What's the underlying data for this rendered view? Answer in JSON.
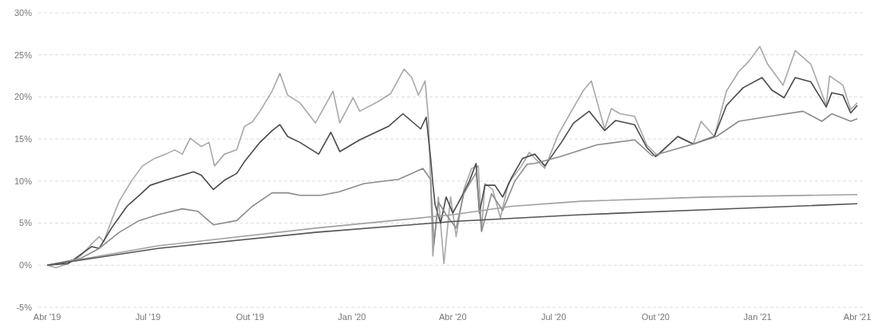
{
  "chart_data": {
    "type": "line",
    "xlim": [
      "2019-03-24",
      "2021-04-06"
    ],
    "xticks": [
      {
        "value": "2019-04-01",
        "label": "Abr '19"
      },
      {
        "value": "2019-07-01",
        "label": "Jul '19"
      },
      {
        "value": "2019-10-01",
        "label": "Out '19"
      },
      {
        "value": "2020-01-01",
        "label": "Jan '20"
      },
      {
        "value": "2020-04-01",
        "label": "Abr '20"
      },
      {
        "value": "2020-07-01",
        "label": "Jul '20"
      },
      {
        "value": "2020-10-01",
        "label": "Out '20"
      },
      {
        "value": "2021-01-01",
        "label": "Jan '21"
      },
      {
        "value": "2021-04-01",
        "label": "Abr '21"
      }
    ],
    "ylim": [
      -5,
      30
    ],
    "yticks": [
      {
        "value": -5,
        "label": "-5%"
      },
      {
        "value": 0,
        "label": "0%"
      },
      {
        "value": 5,
        "label": "5%"
      },
      {
        "value": 10,
        "label": "10%"
      },
      {
        "value": 15,
        "label": "15%"
      },
      {
        "value": 20,
        "label": "20%"
      },
      {
        "value": 25,
        "label": "25%"
      },
      {
        "value": 30,
        "label": "30%"
      }
    ],
    "grid": "y",
    "series": [
      {
        "color": "#a8a8a8",
        "x": [
          "2019-04-01",
          "2019-04-09",
          "2019-04-20",
          "2019-05-01",
          "2019-05-11",
          "2019-05-18",
          "2019-05-22",
          "2019-05-29",
          "2019-06-05",
          "2019-06-16",
          "2019-06-26",
          "2019-07-07",
          "2019-07-17",
          "2019-07-25",
          "2019-08-01",
          "2019-08-08",
          "2019-08-18",
          "2019-08-25",
          "2019-08-30",
          "2019-09-08",
          "2019-09-19",
          "2019-09-26",
          "2019-10-03",
          "2019-10-10",
          "2019-10-21",
          "2019-10-28",
          "2019-11-04",
          "2019-11-15",
          "2019-11-29",
          "2019-12-15",
          "2019-12-21",
          "2020-01-02",
          "2020-01-08",
          "2020-01-24",
          "2020-02-05",
          "2020-02-17",
          "2020-02-24",
          "2020-03-01",
          "2020-03-07",
          "2020-03-10",
          "2020-03-12",
          "2020-03-14",
          "2020-03-19",
          "2020-03-24",
          "2020-03-30",
          "2020-04-04",
          "2020-04-11",
          "2020-04-18",
          "2020-04-24",
          "2020-04-27",
          "2020-04-30",
          "2020-05-07",
          "2020-05-14",
          "2020-05-21",
          "2020-06-02",
          "2020-06-09",
          "2020-06-23",
          "2020-07-05",
          "2020-07-17",
          "2020-07-28",
          "2020-08-04",
          "2020-08-16",
          "2020-08-22",
          "2020-08-30",
          "2020-09-12",
          "2020-09-23",
          "2020-10-03",
          "2020-10-21",
          "2020-11-04",
          "2020-11-11",
          "2020-11-23",
          "2020-12-04",
          "2020-12-15",
          "2020-12-24",
          "2021-01-03",
          "2021-01-10",
          "2021-01-24",
          "2021-02-04",
          "2021-02-18",
          "2021-03-04",
          "2021-03-07",
          "2021-03-19",
          "2021-03-26",
          "2021-04-01"
        ],
        "values": [
          0,
          -0.3,
          0.2,
          1.1,
          2.5,
          3.4,
          2.8,
          5.3,
          7.6,
          10,
          11.8,
          12.7,
          13.2,
          13.7,
          13.2,
          15.1,
          14.1,
          14.6,
          11.8,
          13.2,
          13.7,
          16.5,
          17,
          18.3,
          20.7,
          22.8,
          20.2,
          19.3,
          16.9,
          20.7,
          16.9,
          19.9,
          18.3,
          19.4,
          20.4,
          23.3,
          22.3,
          20.2,
          21.9,
          17.4,
          9.7,
          1.1,
          8.1,
          0.2,
          8.1,
          3.4,
          9,
          11.5,
          11.8,
          4.1,
          9.7,
          9,
          5.6,
          9.7,
          11.8,
          13.4,
          11.5,
          15.5,
          18.3,
          20.8,
          21.9,
          16.2,
          18.6,
          18,
          17.7,
          14.3,
          13,
          15.3,
          14.4,
          17.1,
          15.3,
          20.7,
          23,
          24.2,
          26,
          23.9,
          21.4,
          25.5,
          23.9,
          19,
          22.5,
          21.4,
          18.5,
          19.3
        ]
      },
      {
        "color": "#4a4a4a",
        "x": [
          "2019-04-01",
          "2019-04-20",
          "2019-05-11",
          "2019-05-18",
          "2019-05-29",
          "2019-06-12",
          "2019-06-23",
          "2019-07-03",
          "2019-07-17",
          "2019-08-01",
          "2019-08-11",
          "2019-08-18",
          "2019-08-29",
          "2019-09-08",
          "2019-09-19",
          "2019-09-26",
          "2019-10-10",
          "2019-10-21",
          "2019-10-28",
          "2019-11-04",
          "2019-11-15",
          "2019-12-02",
          "2019-12-13",
          "2019-12-21",
          "2020-01-08",
          "2020-02-03",
          "2020-02-16",
          "2020-02-24",
          "2020-03-03",
          "2020-03-08",
          "2020-03-12",
          "2020-03-14",
          "2020-03-16",
          "2020-03-21",
          "2020-03-26",
          "2020-04-01",
          "2020-04-08",
          "2020-04-16",
          "2020-04-22",
          "2020-04-25",
          "2020-04-30",
          "2020-05-09",
          "2020-05-16",
          "2020-05-24",
          "2020-06-03",
          "2020-06-14",
          "2020-06-23",
          "2020-07-08",
          "2020-07-19",
          "2020-08-02",
          "2020-08-16",
          "2020-08-26",
          "2020-09-12",
          "2020-09-23",
          "2020-10-01",
          "2020-10-21",
          "2020-11-04",
          "2020-11-23",
          "2020-12-04",
          "2020-12-19",
          "2021-01-05",
          "2021-01-14",
          "2021-01-25",
          "2021-02-04",
          "2021-02-18",
          "2021-03-04",
          "2021-03-09",
          "2021-03-19",
          "2021-03-26",
          "2021-04-01"
        ],
        "values": [
          0,
          0.2,
          2.2,
          2,
          4.4,
          7,
          8.3,
          9.5,
          10.1,
          10.7,
          11.1,
          10.7,
          9,
          10.1,
          10.9,
          12.3,
          14.6,
          16,
          16.7,
          15.3,
          14.6,
          13.2,
          15.8,
          13.5,
          14.9,
          16.5,
          18,
          17.1,
          16.2,
          17.6,
          12.7,
          9.7,
          7.2,
          5,
          8.1,
          6.2,
          7.9,
          10,
          12.1,
          6.2,
          9.5,
          9.5,
          8.1,
          10.4,
          12.7,
          13.2,
          11.8,
          14.6,
          16.9,
          18.3,
          16,
          17.2,
          16.7,
          14,
          12.9,
          15.3,
          14.4,
          15.3,
          19,
          21.1,
          22.3,
          20.8,
          19.9,
          22.3,
          21.8,
          18.8,
          20.5,
          20.2,
          18.1,
          19
        ]
      },
      {
        "color": "#8c8c8c",
        "x": [
          "2019-04-01",
          "2019-05-01",
          "2019-05-18",
          "2019-06-05",
          "2019-06-23",
          "2019-07-10",
          "2019-08-01",
          "2019-08-15",
          "2019-08-29",
          "2019-09-19",
          "2019-10-03",
          "2019-10-21",
          "2019-11-04",
          "2019-11-15",
          "2019-12-04",
          "2019-12-20",
          "2020-01-12",
          "2020-02-12",
          "2020-03-05",
          "2020-03-12",
          "2020-03-15",
          "2020-03-19",
          "2020-03-26",
          "2020-04-04",
          "2020-04-11",
          "2020-04-22",
          "2020-04-27",
          "2020-05-06",
          "2020-05-16",
          "2020-05-27",
          "2020-06-07",
          "2020-06-14",
          "2020-07-07",
          "2020-07-26",
          "2020-08-09",
          "2020-09-12",
          "2020-09-28",
          "2020-11-04",
          "2020-11-25",
          "2020-12-15",
          "2021-01-12",
          "2021-02-11",
          "2021-02-28",
          "2021-03-09",
          "2021-03-26",
          "2021-04-01"
        ],
        "values": [
          0,
          0.8,
          2,
          3.9,
          5.3,
          6,
          6.7,
          6.4,
          4.8,
          5.3,
          7,
          8.6,
          8.6,
          8.3,
          8.3,
          8.7,
          9.7,
          10.2,
          11.5,
          10.2,
          2.5,
          7.5,
          6,
          4.4,
          8.5,
          11,
          4,
          8.5,
          6.5,
          10,
          12,
          12.1,
          12.9,
          13.7,
          14.3,
          14.9,
          13,
          14.4,
          15.3,
          17.1,
          17.7,
          18.3,
          17.1,
          18,
          17.1,
          17.4
        ]
      },
      {
        "color": "#a0a0a0",
        "x": [
          "2019-04-01",
          "2019-07-10",
          "2019-11-29",
          "2020-04-01",
          "2020-05-24",
          "2020-07-26",
          "2020-11-16",
          "2021-04-01"
        ],
        "values": [
          0,
          2.3,
          4.4,
          6,
          7,
          7.6,
          8.1,
          8.4
        ]
      },
      {
        "color": "#555555",
        "x": [
          "2019-04-01",
          "2019-07-10",
          "2019-11-29",
          "2020-04-01",
          "2020-07-26",
          "2020-11-16",
          "2021-04-01"
        ],
        "values": [
          0,
          2,
          3.9,
          5.2,
          6,
          6.6,
          7.3
        ]
      }
    ]
  }
}
